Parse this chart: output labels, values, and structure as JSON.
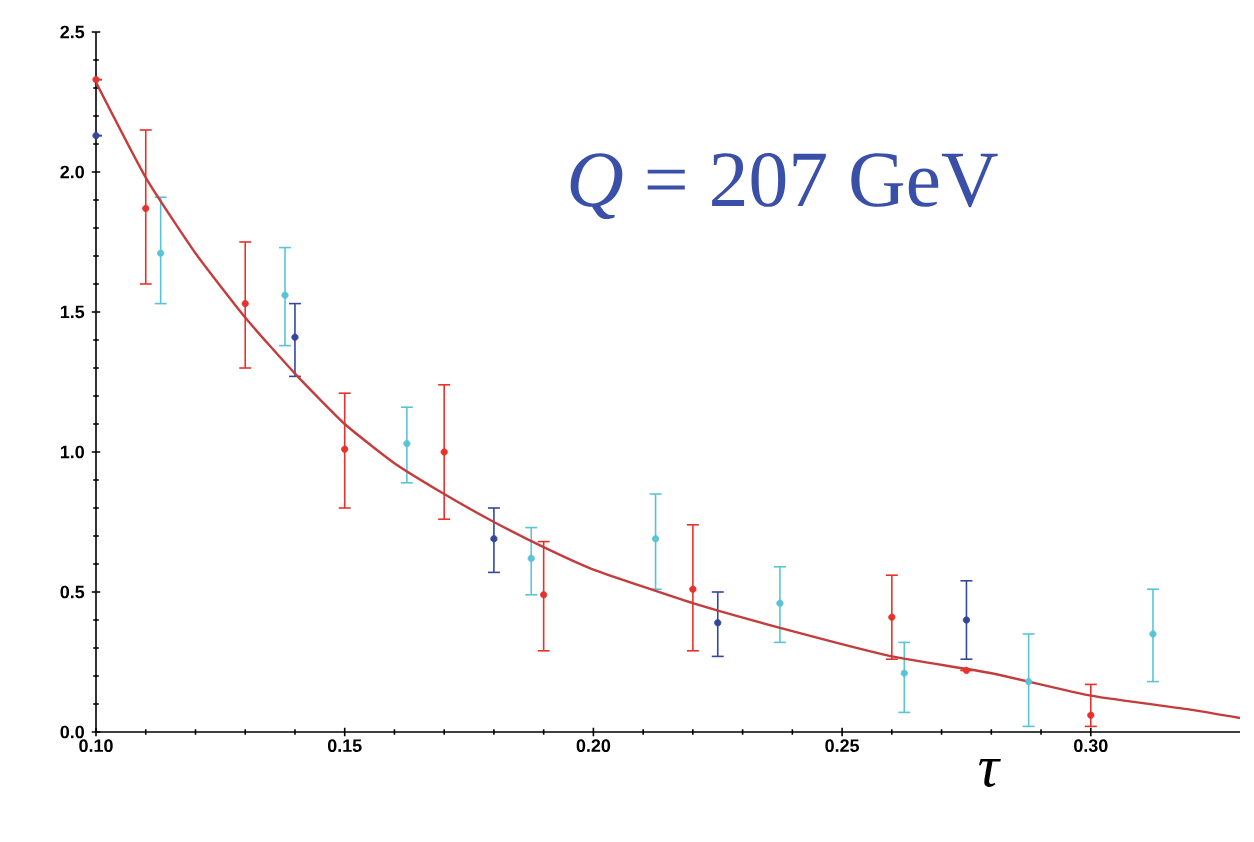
{
  "chart_data": {
    "type": "scatter",
    "xlabel": "τ",
    "annotations": [
      "*Q* = 207 GeV"
    ],
    "xlim": [
      0.1,
      0.33
    ],
    "ylim": [
      0,
      2.5
    ],
    "xticks": [
      {
        "value": 0.1,
        "label": "0.10"
      },
      {
        "value": 0.15,
        "label": "0.15"
      },
      {
        "value": 0.2,
        "label": "0.20"
      },
      {
        "value": 0.25,
        "label": "0.25"
      },
      {
        "value": 0.3,
        "label": "0.30"
      }
    ],
    "yticks": [
      {
        "value": 0,
        "label": "0.0"
      },
      {
        "value": 0.5,
        "label": "0.5"
      },
      {
        "value": 1.0,
        "label": "1.0"
      },
      {
        "value": 1.5,
        "label": "1.5"
      },
      {
        "value": 2.0,
        "label": "2.0"
      },
      {
        "value": 2.5,
        "label": "2.5"
      }
    ],
    "grid": false,
    "series": [
      {
        "color": "#e8312a",
        "marker": "circle",
        "x": [
          0.1,
          0.11,
          0.13,
          0.15,
          0.17,
          0.19,
          0.22,
          0.26,
          0.275,
          0.3
        ],
        "values": [
          2.33,
          1.87,
          1.53,
          1.01,
          1.0,
          0.49,
          0.51,
          0.41,
          0.22,
          0.06
        ],
        "errors": [
          null,
          [
            1.6,
            2.15
          ],
          [
            1.3,
            1.75
          ],
          [
            0.8,
            1.21
          ],
          [
            0.76,
            1.24
          ],
          [
            0.29,
            0.68
          ],
          [
            0.29,
            0.74
          ],
          [
            0.26,
            0.56
          ],
          null,
          [
            0.02,
            0.17
          ]
        ]
      },
      {
        "color": "#5bc3d6",
        "marker": "circle",
        "x": [
          0.113,
          0.138,
          0.1625,
          0.1875,
          0.2125,
          0.2375,
          0.2625,
          0.2875,
          0.3125
        ],
        "values": [
          1.71,
          1.56,
          1.03,
          0.62,
          0.69,
          0.46,
          0.21,
          0.18,
          0.35
        ],
        "errors": [
          [
            1.53,
            1.91
          ],
          [
            1.38,
            1.73
          ],
          [
            0.89,
            1.16
          ],
          [
            0.49,
            0.73
          ],
          [
            0.51,
            0.85
          ],
          [
            0.32,
            0.59
          ],
          [
            0.07,
            0.32
          ],
          [
            0.02,
            0.35
          ],
          [
            0.18,
            0.51
          ]
        ]
      },
      {
        "color": "#34479c",
        "marker": "circle",
        "x": [
          0.1,
          0.14,
          0.18,
          0.225,
          0.275
        ],
        "values": [
          2.13,
          1.41,
          0.69,
          0.39,
          0.4
        ],
        "errors": [
          null,
          [
            1.27,
            1.53
          ],
          [
            0.57,
            0.8
          ],
          [
            0.27,
            0.5
          ],
          [
            0.26,
            0.54
          ]
        ]
      },
      {
        "type": "line",
        "color": "#c43c3c",
        "marker": "none",
        "line_style": "solid",
        "x": [
          0.1,
          0.11,
          0.12,
          0.13,
          0.14,
          0.15,
          0.16,
          0.17,
          0.18,
          0.19,
          0.2,
          0.22,
          0.24,
          0.26,
          0.28,
          0.3,
          0.32,
          0.33
        ],
        "values": [
          2.32,
          1.98,
          1.71,
          1.48,
          1.28,
          1.1,
          0.96,
          0.85,
          0.75,
          0.66,
          0.58,
          0.46,
          0.36,
          0.27,
          0.21,
          0.13,
          0.08,
          0.05
        ]
      }
    ]
  }
}
